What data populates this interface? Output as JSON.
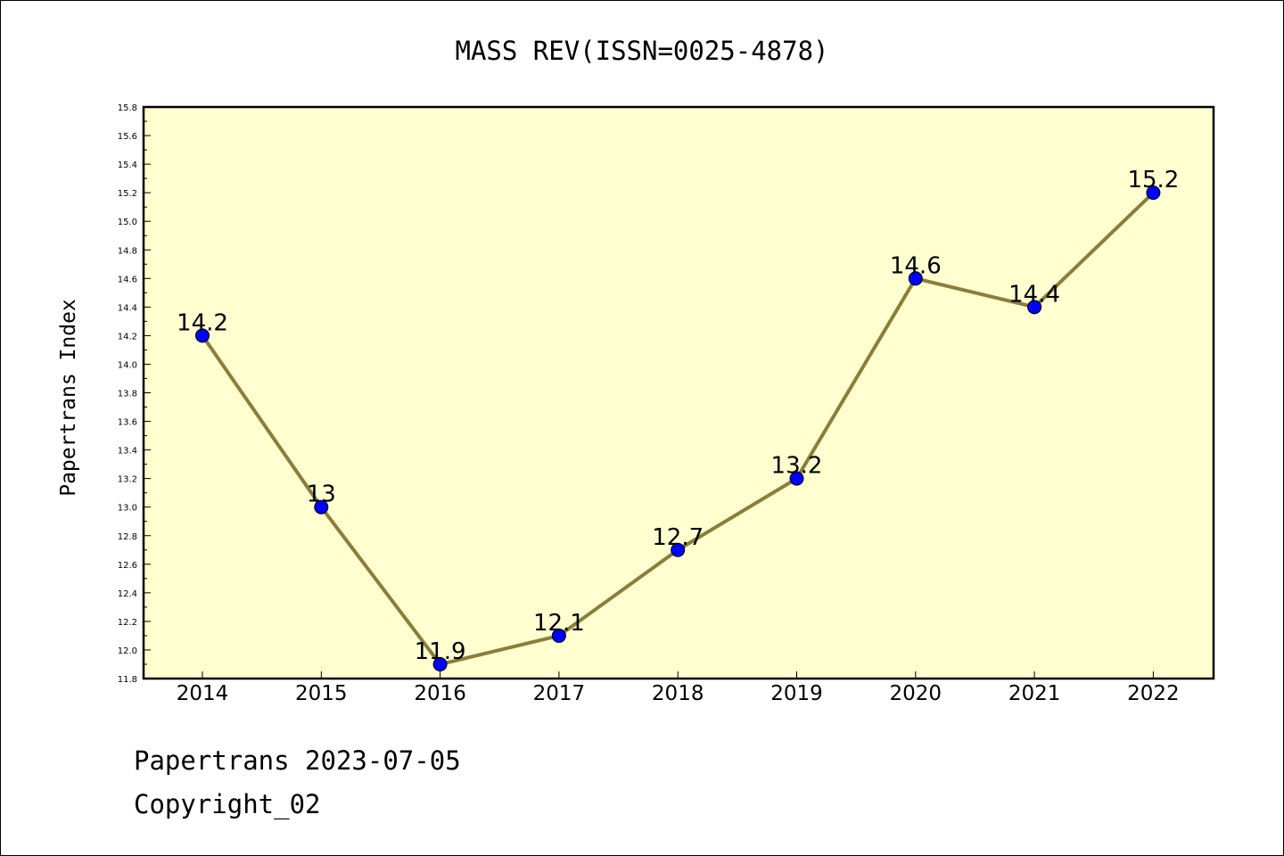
{
  "chart_data": {
    "type": "line",
    "title": "MASS REV(ISSN=0025-4878)",
    "xlabel": "",
    "ylabel": "Papertrans Index",
    "x": [
      "2014",
      "2015",
      "2016",
      "2017",
      "2018",
      "2019",
      "2020",
      "2021",
      "2022"
    ],
    "values": [
      14.2,
      13,
      11.9,
      12.1,
      12.7,
      13.2,
      14.6,
      14.4,
      15.2
    ],
    "data_labels": [
      "14.2",
      "13",
      "11.9",
      "12.1",
      "12.7",
      "13.2",
      "14.6",
      "14.4",
      "15.2"
    ],
    "ylim": [
      11.8,
      15.8
    ],
    "yticks": [
      "11.8",
      "12.0",
      "12.2",
      "12.4",
      "12.6",
      "12.8",
      "13.0",
      "13.2",
      "13.4",
      "13.6",
      "13.8",
      "14.0",
      "14.2",
      "14.4",
      "14.6",
      "14.8",
      "15.0",
      "15.2",
      "15.4",
      "15.6",
      "15.8"
    ],
    "grid": false,
    "legend": "none",
    "colors": {
      "plot_background": "#ffffd0",
      "line": "#8b7d3a",
      "marker": "#0000ff"
    }
  },
  "footer": {
    "line1": "Papertrans 2023-07-05",
    "line2": "Copyright_02"
  }
}
